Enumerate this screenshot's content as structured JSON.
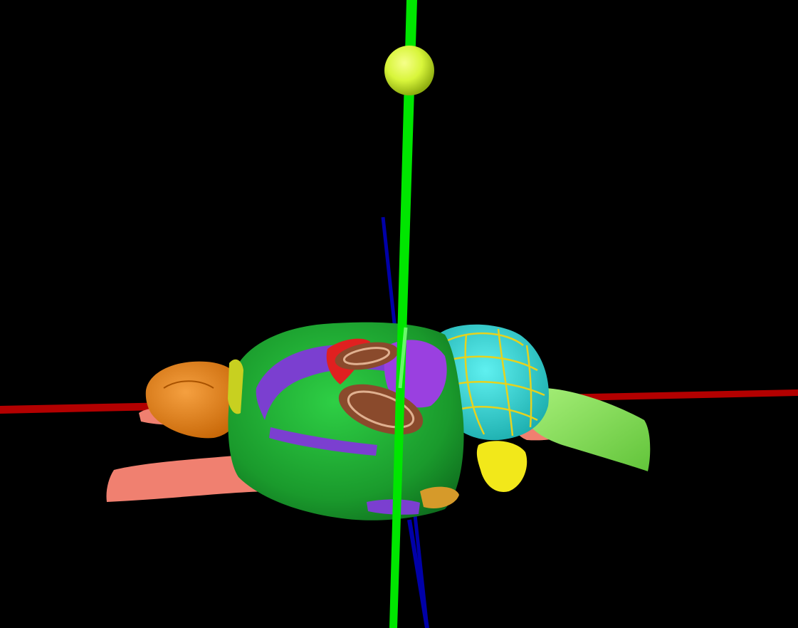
{
  "scene": {
    "background_color": "#000000",
    "axes": {
      "x_axis_color": "#b30000",
      "y_axis_color": "#00e600",
      "z_axis_color": "#0000a8"
    },
    "probe": {
      "shaft_color": "#7cfc7c",
      "tip_marker_color": "#d8f53a"
    },
    "regions": [
      {
        "name": "olfactory-bulb",
        "color": "#e8820c"
      },
      {
        "name": "cerebral-cortex",
        "color": "#1ea62f"
      },
      {
        "name": "corpus-callosum",
        "color": "#7b3fd0"
      },
      {
        "name": "hippocampus",
        "color": "#8a4a2c"
      },
      {
        "name": "striatum",
        "color": "#e02020"
      },
      {
        "name": "midbrain",
        "color": "#9a40e0"
      },
      {
        "name": "cerebellum",
        "color": "#2ed6d6"
      },
      {
        "name": "cerebellar-cortex-detail",
        "color": "#e6d21e"
      },
      {
        "name": "paraflocculus",
        "color": "#f2e81a"
      },
      {
        "name": "medulla",
        "color": "#86e05a"
      },
      {
        "name": "fiber-tracts",
        "color": "#f08070"
      },
      {
        "name": "pons",
        "color": "#f0a0a0"
      }
    ]
  }
}
